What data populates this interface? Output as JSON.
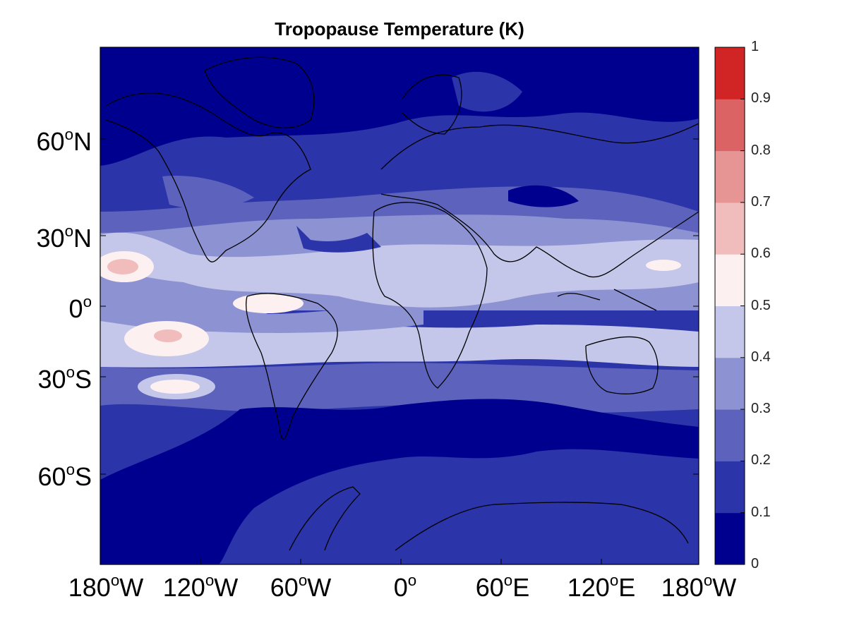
{
  "title": "Tropopause Temperature (K)",
  "map": {
    "type": "filled-contour-map",
    "projection": "equirectangular",
    "lon_range": [
      -180,
      180
    ],
    "lat_range": [
      -90,
      90
    ],
    "coastlines": true
  },
  "axes": {
    "y_ticks": [
      {
        "num": "60",
        "deg": "o",
        "hem": "N"
      },
      {
        "num": "30",
        "deg": "o",
        "hem": "N"
      },
      {
        "num": "0",
        "deg": "o",
        "hem": ""
      },
      {
        "num": "30",
        "deg": "o",
        "hem": "S"
      },
      {
        "num": "60",
        "deg": "o",
        "hem": "S"
      }
    ],
    "x_ticks": [
      {
        "num": "180",
        "deg": "o",
        "hem": "W"
      },
      {
        "num": "120",
        "deg": "o",
        "hem": "W"
      },
      {
        "num": "60",
        "deg": "o",
        "hem": "W"
      },
      {
        "num": "0",
        "deg": "o",
        "hem": ""
      },
      {
        "num": "60",
        "deg": "o",
        "hem": "E"
      },
      {
        "num": "120",
        "deg": "o",
        "hem": "E"
      },
      {
        "num": "180",
        "deg": "o",
        "hem": "W"
      }
    ]
  },
  "colorbar": {
    "ticks": [
      "0",
      "0.1",
      "0.2",
      "0.3",
      "0.4",
      "0.5",
      "0.6",
      "0.7",
      "0.8",
      "0.9",
      "1"
    ],
    "range": [
      0,
      1
    ],
    "colors": [
      "#00008f",
      "#2b34a8",
      "#5d63bd",
      "#8d92d3",
      "#c4c7e9",
      "#fcf0f0",
      "#f1bcbc",
      "#e69494",
      "#db6363",
      "#d12424"
    ]
  }
}
